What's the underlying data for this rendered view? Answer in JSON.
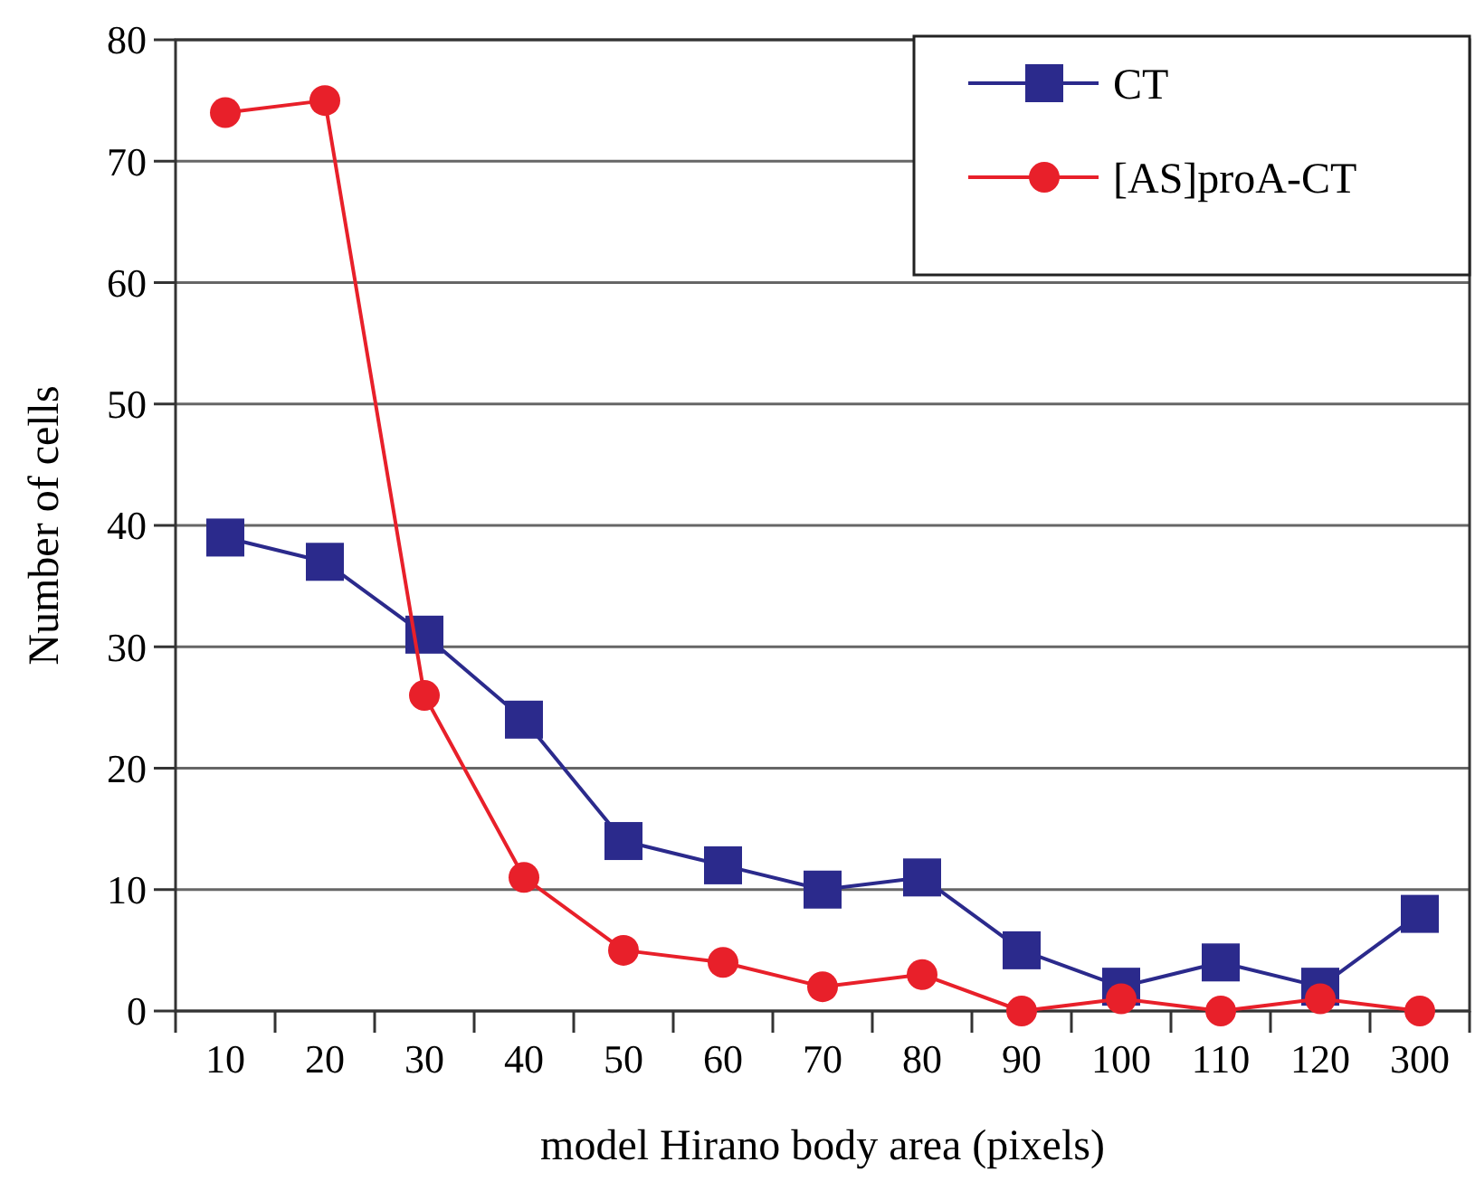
{
  "chart_data": {
    "type": "line",
    "xlabel": "model Hirano body area (pixels)",
    "ylabel": "Number of cells",
    "categories": [
      "10",
      "20",
      "30",
      "40",
      "50",
      "60",
      "70",
      "80",
      "90",
      "100",
      "110",
      "120",
      "300"
    ],
    "ylim": [
      0,
      80
    ],
    "yticks": [
      0,
      10,
      20,
      30,
      40,
      50,
      60,
      70,
      80
    ],
    "grid": "y",
    "legend": "top right",
    "series": [
      {
        "name": "CT",
        "color": "#2b2a8c",
        "marker": "square",
        "values": [
          39,
          37,
          31,
          24,
          14,
          12,
          10,
          11,
          5,
          2,
          4,
          2,
          8
        ]
      },
      {
        "name": "[AS]proA-CT",
        "color": "#e8202a",
        "marker": "circle",
        "values": [
          74,
          75,
          26,
          11,
          5,
          4,
          2,
          3,
          0,
          1,
          0,
          1,
          0
        ]
      }
    ]
  }
}
